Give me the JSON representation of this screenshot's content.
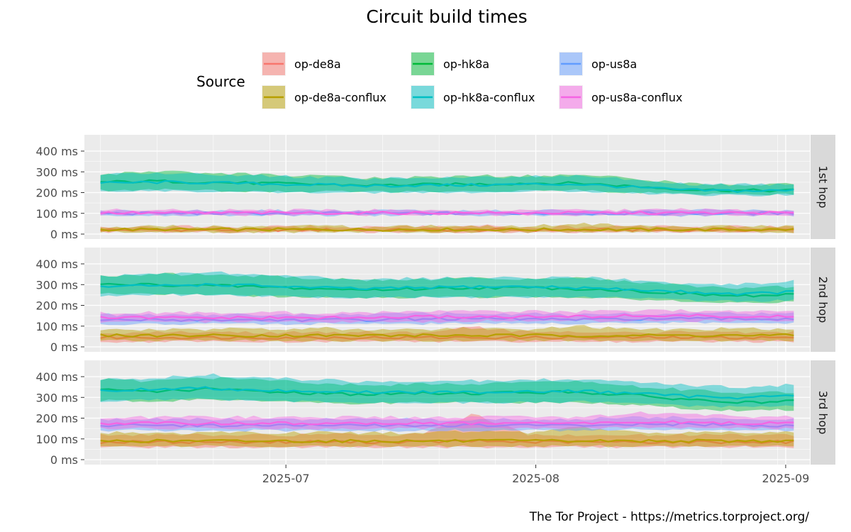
{
  "chart_data": {
    "type": "line",
    "title": "Circuit build times",
    "caption": "The Tor Project - https://metrics.torproject.org/",
    "legend_title": "Source",
    "legend_position": "top",
    "grid": true,
    "x_range": [
      "2025-06-06",
      "2025-09-04"
    ],
    "x_ticks": [
      "2025-07",
      "2025-08",
      "2025-09"
    ],
    "y_ticks": [
      "0 ms",
      "100 ms",
      "200 ms",
      "300 ms",
      "400 ms"
    ],
    "ylim": [
      0,
      400
    ],
    "series_styles": [
      {
        "name": "op-de8a",
        "color": "#F8766D"
      },
      {
        "name": "op-de8a-conflux",
        "color": "#B79F00"
      },
      {
        "name": "op-hk8a",
        "color": "#00BA38"
      },
      {
        "name": "op-hk8a-conflux",
        "color": "#00BFC4"
      },
      {
        "name": "op-us8a",
        "color": "#619CFF"
      },
      {
        "name": "op-us8a-conflux",
        "color": "#F564E3"
      }
    ],
    "facets": [
      {
        "label": "1st hop",
        "series": [
          {
            "name": "op-de8a",
            "median": [
              20,
              20,
              20,
              20,
              20,
              20,
              20,
              20,
              20,
              20,
              20,
              20,
              20,
              20
            ],
            "low": [
              10,
              10,
              10,
              10,
              10,
              10,
              10,
              10,
              10,
              10,
              10,
              10,
              10,
              10
            ],
            "high": [
              35,
              35,
              35,
              35,
              35,
              35,
              35,
              40,
              35,
              35,
              35,
              35,
              35,
              35
            ]
          },
          {
            "name": "op-de8a-conflux",
            "median": [
              22,
              22,
              22,
              22,
              22,
              22,
              22,
              22,
              22,
              22,
              22,
              22,
              22,
              22
            ],
            "low": [
              10,
              10,
              10,
              10,
              10,
              10,
              10,
              10,
              10,
              10,
              10,
              10,
              10,
              10
            ],
            "high": [
              35,
              38,
              35,
              35,
              38,
              35,
              38,
              35,
              38,
              50,
              38,
              35,
              38,
              35
            ]
          },
          {
            "name": "op-hk8a",
            "median": [
              250,
              255,
              250,
              245,
              240,
              235,
              238,
              240,
              245,
              245,
              230,
              215,
              210,
              210
            ],
            "low": [
              210,
              215,
              210,
              205,
              205,
              205,
              205,
              205,
              210,
              210,
              200,
              195,
              190,
              190
            ],
            "high": [
              290,
              300,
              295,
              285,
              280,
              270,
              275,
              280,
              280,
              285,
              265,
              245,
              240,
              240
            ]
          },
          {
            "name": "op-hk8a-conflux",
            "median": [
              245,
              250,
              248,
              242,
              238,
              232,
              235,
              236,
              240,
              240,
              225,
              212,
              208,
              210
            ],
            "low": [
              205,
              210,
              205,
              200,
              200,
              200,
              200,
              200,
              205,
              205,
              195,
              190,
              185,
              188
            ],
            "high": [
              285,
              295,
              290,
              280,
              275,
              265,
              270,
              275,
              275,
              280,
              260,
              240,
              238,
              240
            ]
          },
          {
            "name": "op-us8a",
            "median": [
              100,
              100,
              100,
              100,
              100,
              100,
              100,
              100,
              100,
              100,
              100,
              100,
              100,
              100
            ],
            "low": [
              90,
              90,
              90,
              90,
              90,
              90,
              90,
              90,
              90,
              90,
              90,
              85,
              90,
              90
            ],
            "high": [
              112,
              112,
              112,
              112,
              112,
              112,
              112,
              112,
              112,
              112,
              112,
              115,
              112,
              112
            ]
          },
          {
            "name": "op-us8a-conflux",
            "median": [
              102,
              102,
              102,
              102,
              102,
              102,
              102,
              102,
              102,
              102,
              102,
              102,
              102,
              102
            ],
            "low": [
              92,
              92,
              92,
              92,
              92,
              92,
              92,
              92,
              92,
              92,
              92,
              92,
              92,
              92
            ],
            "high": [
              115,
              118,
              115,
              115,
              115,
              115,
              115,
              115,
              115,
              115,
              115,
              118,
              115,
              115
            ]
          }
        ]
      },
      {
        "label": "2nd hop",
        "series": [
          {
            "name": "op-de8a",
            "median": [
              45,
              45,
              45,
              45,
              45,
              45,
              45,
              45,
              45,
              45,
              45,
              45,
              45,
              45
            ],
            "low": [
              25,
              25,
              25,
              25,
              25,
              25,
              25,
              25,
              25,
              25,
              25,
              25,
              25,
              25
            ],
            "high": [
              70,
              70,
              70,
              70,
              70,
              70,
              70,
              95,
              70,
              70,
              70,
              70,
              70,
              70
            ]
          },
          {
            "name": "op-de8a-conflux",
            "median": [
              55,
              55,
              55,
              55,
              55,
              55,
              55,
              55,
              55,
              55,
              55,
              55,
              55,
              55
            ],
            "low": [
              30,
              30,
              30,
              30,
              30,
              30,
              30,
              30,
              30,
              30,
              30,
              30,
              30,
              30
            ],
            "high": [
              85,
              85,
              85,
              85,
              90,
              85,
              85,
              90,
              85,
              100,
              85,
              85,
              90,
              85
            ]
          },
          {
            "name": "op-hk8a",
            "median": [
              300,
              300,
              295,
              290,
              280,
              275,
              280,
              285,
              285,
              280,
              270,
              255,
              245,
              250
            ],
            "low": [
              255,
              255,
              250,
              245,
              240,
              235,
              240,
              240,
              240,
              240,
              230,
              220,
              210,
              215
            ],
            "high": [
              345,
              350,
              350,
              340,
              330,
              320,
              325,
              330,
              330,
              330,
              315,
              295,
              285,
              290
            ]
          },
          {
            "name": "op-hk8a-conflux",
            "median": [
              290,
              295,
              300,
              295,
              285,
              280,
              285,
              290,
              290,
              285,
              275,
              265,
              255,
              265
            ],
            "low": [
              245,
              250,
              250,
              245,
              240,
              235,
              240,
              240,
              240,
              240,
              235,
              225,
              220,
              225
            ],
            "high": [
              340,
              350,
              360,
              345,
              335,
              325,
              330,
              335,
              335,
              335,
              320,
              305,
              300,
              315
            ]
          },
          {
            "name": "op-us8a",
            "median": [
              130,
              130,
              130,
              130,
              130,
              130,
              135,
              135,
              135,
              130,
              135,
              135,
              135,
              135
            ],
            "low": [
              110,
              110,
              110,
              110,
              110,
              110,
              110,
              115,
              115,
              110,
              115,
              115,
              115,
              115
            ],
            "high": [
              155,
              155,
              155,
              155,
              155,
              155,
              160,
              160,
              160,
              155,
              160,
              160,
              160,
              160
            ]
          },
          {
            "name": "op-us8a-conflux",
            "median": [
              140,
              140,
              140,
              140,
              140,
              140,
              145,
              145,
              145,
              145,
              150,
              150,
              145,
              145
            ],
            "low": [
              120,
              120,
              120,
              120,
              120,
              120,
              120,
              125,
              125,
              125,
              125,
              125,
              125,
              125
            ],
            "high": [
              165,
              165,
              165,
              165,
              165,
              165,
              170,
              170,
              170,
              170,
              175,
              175,
              170,
              170
            ]
          }
        ]
      },
      {
        "label": "3rd hop",
        "series": [
          {
            "name": "op-de8a",
            "median": [
              85,
              85,
              85,
              85,
              85,
              85,
              85,
              90,
              85,
              85,
              85,
              85,
              85,
              85
            ],
            "low": [
              60,
              60,
              60,
              60,
              60,
              60,
              60,
              60,
              60,
              60,
              60,
              60,
              60,
              60
            ],
            "high": [
              120,
              120,
              120,
              120,
              120,
              120,
              120,
              220,
              120,
              120,
              120,
              120,
              120,
              120
            ]
          },
          {
            "name": "op-de8a-conflux",
            "median": [
              90,
              90,
              90,
              90,
              90,
              90,
              90,
              90,
              90,
              90,
              90,
              90,
              90,
              90
            ],
            "low": [
              65,
              65,
              65,
              65,
              65,
              65,
              65,
              65,
              65,
              65,
              65,
              65,
              65,
              65
            ],
            "high": [
              130,
              130,
              130,
              130,
              130,
              130,
              130,
              140,
              130,
              160,
              130,
              130,
              130,
              130
            ]
          },
          {
            "name": "op-hk8a",
            "median": [
              335,
              330,
              340,
              330,
              320,
              315,
              320,
              320,
              325,
              325,
              310,
              290,
              275,
              280
            ],
            "low": [
              285,
              280,
              290,
              285,
              275,
              270,
              275,
              275,
              275,
              275,
              265,
              245,
              235,
              240
            ],
            "high": [
              385,
              380,
              395,
              385,
              370,
              360,
              365,
              365,
              370,
              375,
              355,
              335,
              320,
              325
            ]
          },
          {
            "name": "op-hk8a-conflux",
            "median": [
              330,
              340,
              345,
              335,
              330,
              325,
              325,
              325,
              330,
              330,
              320,
              305,
              300,
              310
            ],
            "low": [
              280,
              290,
              290,
              285,
              280,
              275,
              275,
              275,
              275,
              280,
              270,
              260,
              255,
              260
            ],
            "high": [
              385,
              395,
              410,
              395,
              385,
              375,
              380,
              380,
              385,
              385,
              370,
              360,
              350,
              360
            ]
          },
          {
            "name": "op-us8a",
            "median": [
              165,
              165,
              165,
              165,
              165,
              165,
              165,
              165,
              165,
              165,
              170,
              170,
              165,
              165
            ],
            "low": [
              140,
              140,
              140,
              140,
              140,
              140,
              140,
              140,
              140,
              140,
              145,
              145,
              140,
              140
            ],
            "high": [
              195,
              195,
              195,
              195,
              195,
              195,
              195,
              195,
              195,
              195,
              205,
              205,
              195,
              195
            ]
          },
          {
            "name": "op-us8a-conflux",
            "median": [
              175,
              175,
              175,
              175,
              175,
              175,
              175,
              175,
              175,
              175,
              180,
              180,
              175,
              175
            ],
            "low": [
              150,
              150,
              150,
              150,
              150,
              150,
              150,
              150,
              150,
              150,
              155,
              155,
              150,
              150
            ],
            "high": [
              205,
              205,
              205,
              205,
              205,
              205,
              205,
              205,
              205,
              205,
              225,
              225,
              205,
              205
            ]
          }
        ]
      }
    ]
  }
}
